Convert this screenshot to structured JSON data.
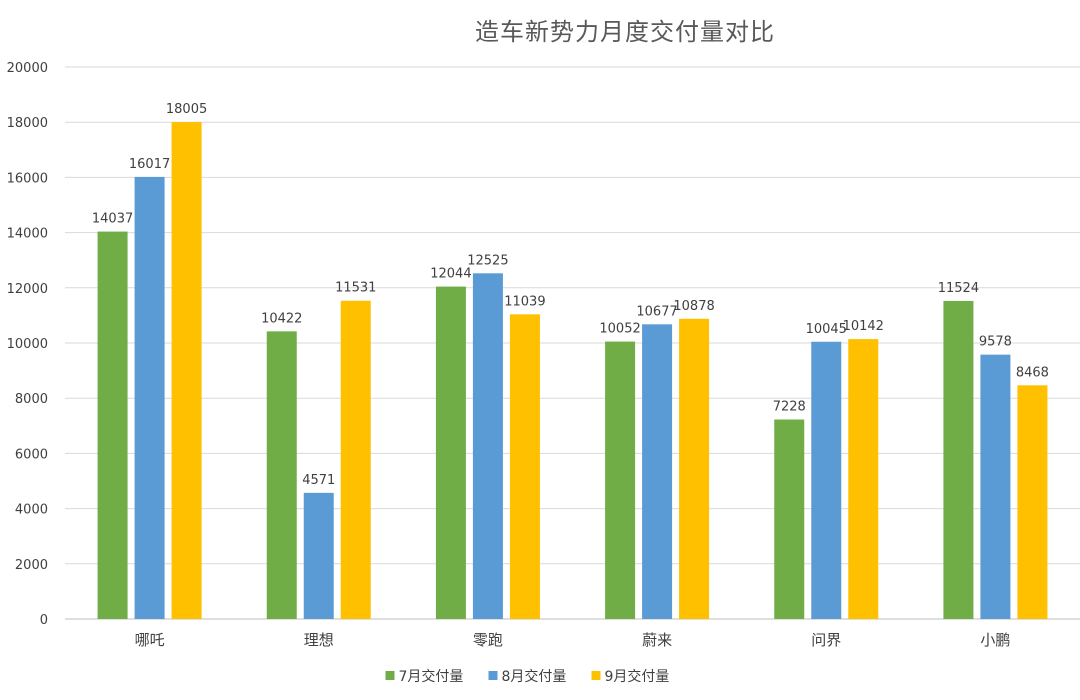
{
  "chart_data": {
    "type": "bar",
    "title": "造车新势力月度交付量对比",
    "categories": [
      "哪吒",
      "理想",
      "零跑",
      "蔚来",
      "问界",
      "小鹏"
    ],
    "series": [
      {
        "name": "7月交付量",
        "color": "#70AD47",
        "values": [
          14037,
          10422,
          12044,
          10052,
          7228,
          11524
        ]
      },
      {
        "name": "8月交付量",
        "color": "#5B9BD5",
        "values": [
          16017,
          4571,
          12525,
          10677,
          10045,
          9578
        ]
      },
      {
        "name": "9月交付量",
        "color": "#FFC000",
        "values": [
          18005,
          11531,
          11039,
          10878,
          10142,
          8468
        ]
      }
    ],
    "ylim": [
      0,
      20000
    ],
    "yticks": [
      0,
      2000,
      4000,
      6000,
      8000,
      10000,
      12000,
      14000,
      16000,
      18000,
      20000
    ],
    "grid": true,
    "legend_position": "bottom"
  }
}
